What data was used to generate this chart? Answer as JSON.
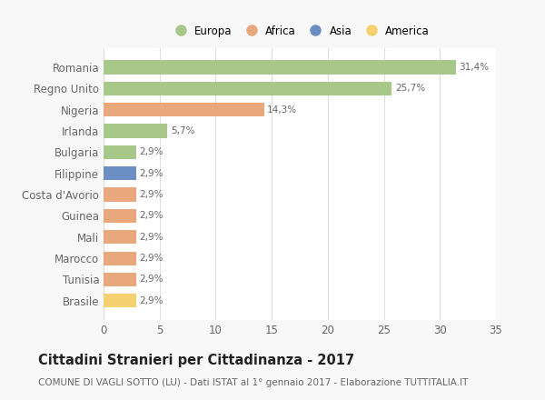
{
  "categories": [
    "Romania",
    "Regno Unito",
    "Nigeria",
    "Irlanda",
    "Bulgaria",
    "Filippine",
    "Costa d'Avorio",
    "Guinea",
    "Mali",
    "Marocco",
    "Tunisia",
    "Brasile"
  ],
  "values": [
    31.4,
    25.7,
    14.3,
    5.7,
    2.9,
    2.9,
    2.9,
    2.9,
    2.9,
    2.9,
    2.9,
    2.9
  ],
  "labels": [
    "31,4%",
    "25,7%",
    "14,3%",
    "5,7%",
    "2,9%",
    "2,9%",
    "2,9%",
    "2,9%",
    "2,9%",
    "2,9%",
    "2,9%",
    "2,9%"
  ],
  "colors": [
    "#a8c88a",
    "#a8c88a",
    "#e8a87c",
    "#a8c88a",
    "#a8c88a",
    "#6b8ec4",
    "#e8a87c",
    "#e8a87c",
    "#e8a87c",
    "#e8a87c",
    "#e8a87c",
    "#f5d06e"
  ],
  "continent_colors": {
    "Europa": "#a8c88a",
    "Africa": "#e8a87c",
    "Asia": "#6b8ec4",
    "America": "#f5d06e"
  },
  "legend_labels": [
    "Europa",
    "Africa",
    "Asia",
    "America"
  ],
  "xlim": [
    0,
    35
  ],
  "xticks": [
    0,
    5,
    10,
    15,
    20,
    25,
    30,
    35
  ],
  "title": "Cittadini Stranieri per Cittadinanza - 2017",
  "subtitle": "COMUNE DI VAGLI SOTTO (LU) - Dati ISTAT al 1° gennaio 2017 - Elaborazione TUTTITALIA.IT",
  "title_fontsize": 10.5,
  "subtitle_fontsize": 7.5,
  "background_color": "#f8f8f8",
  "bar_background": "#ffffff",
  "grid_color": "#dddddd",
  "text_color": "#666666"
}
